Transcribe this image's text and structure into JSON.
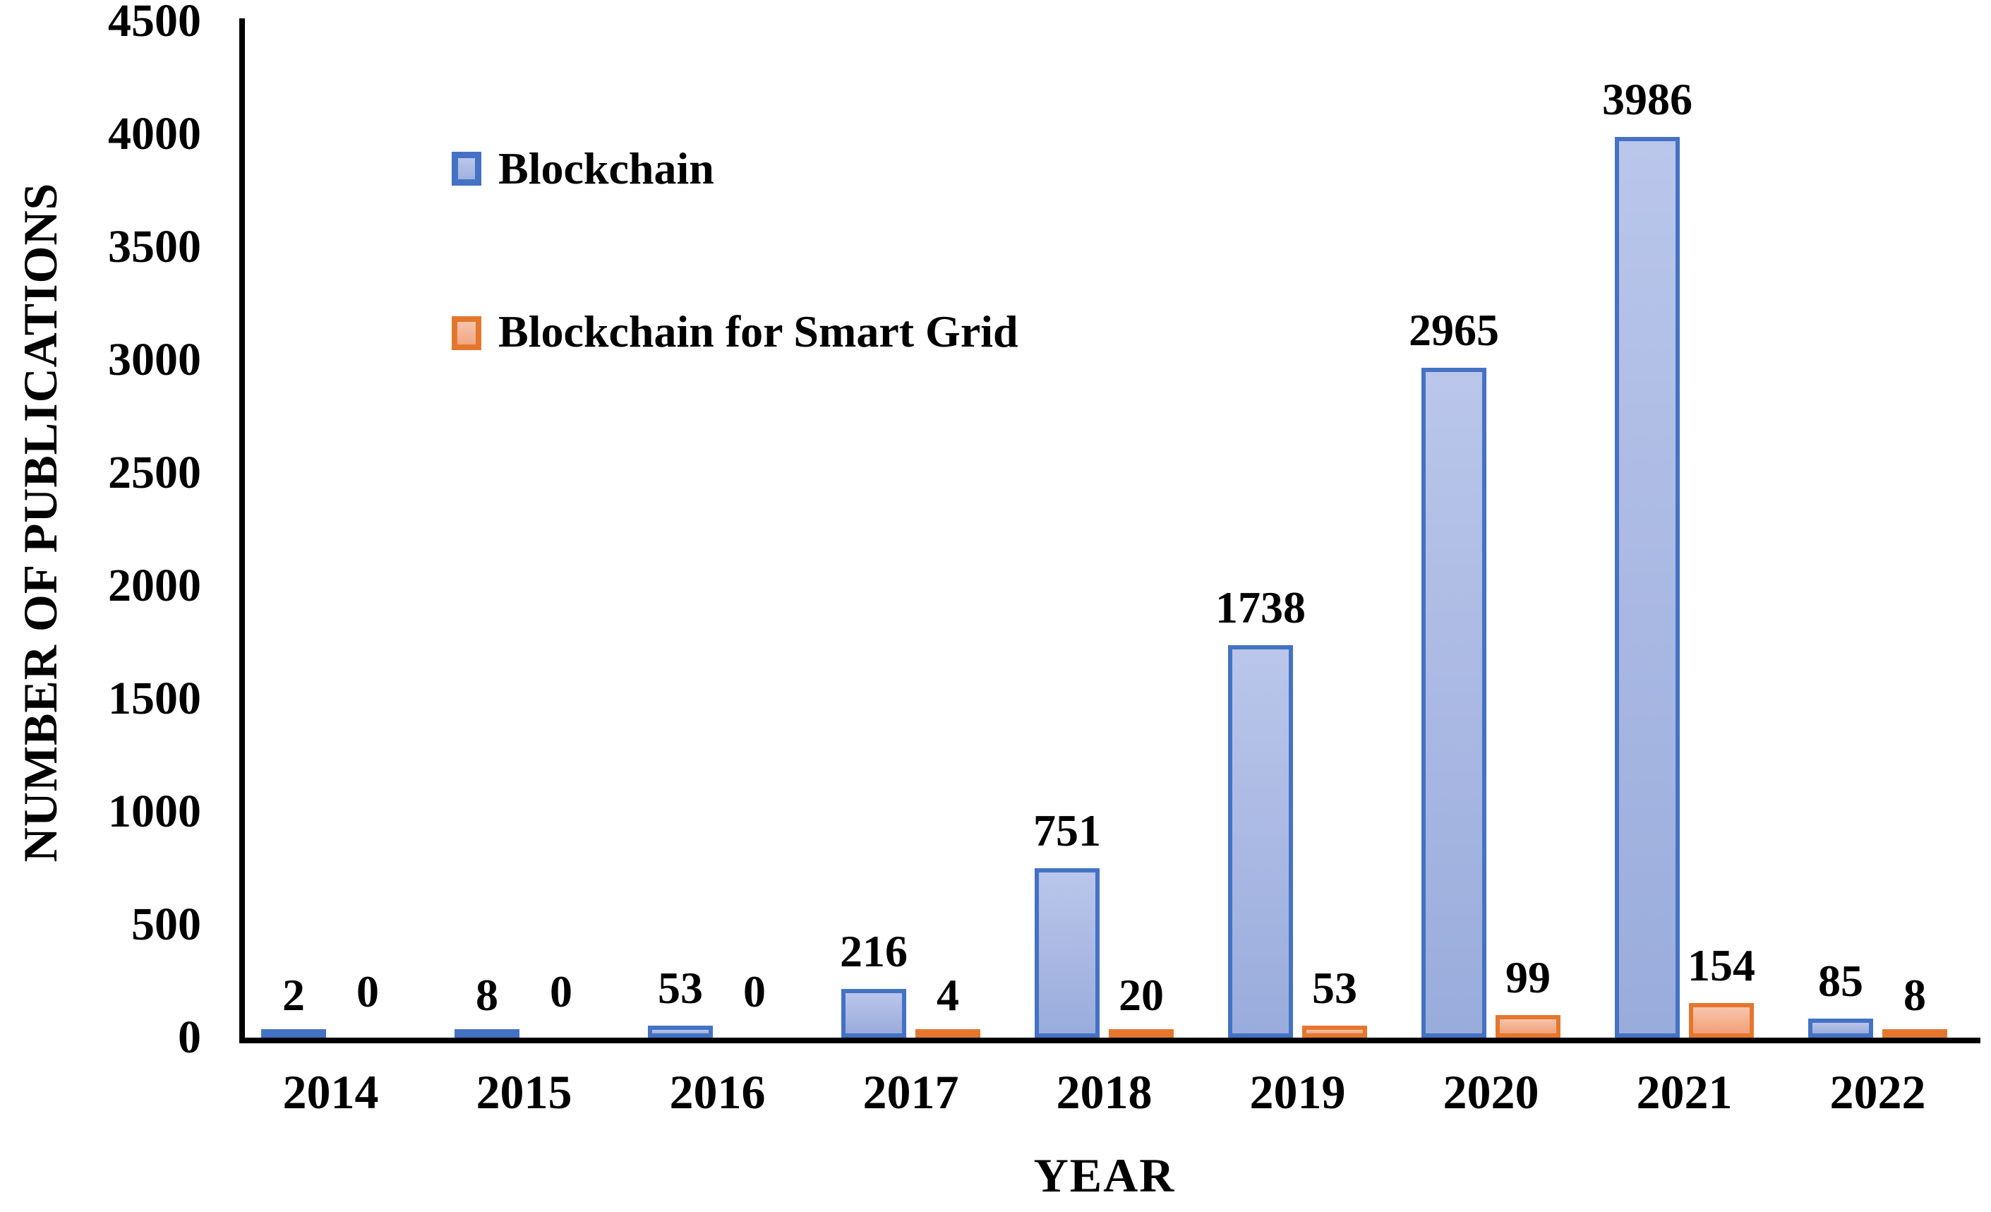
{
  "chart_data": {
    "type": "bar",
    "title": "",
    "xlabel": "YEAR",
    "ylabel": "NUMBER OF PUBLICATIONS",
    "categories": [
      "2014",
      "2015",
      "2016",
      "2017",
      "2018",
      "2019",
      "2020",
      "2021",
      "2022"
    ],
    "series": [
      {
        "name": "Blockchain",
        "values": [
          2,
          8,
          53,
          216,
          751,
          1738,
          2965,
          3986,
          85
        ],
        "border_color": "#4472C4",
        "fill_top": "#BAC6EA",
        "fill_bottom": "#9AACDC"
      },
      {
        "name": "Blockchain for Smart Grid",
        "values": [
          0,
          0,
          0,
          4,
          20,
          53,
          99,
          154,
          8
        ],
        "border_color": "#E4772D",
        "fill_top": "#F6C4AC",
        "fill_bottom": "#F2A078"
      }
    ],
    "data_labels_visible": true,
    "ylim": [
      0,
      4500
    ],
    "ytick_step": 500,
    "yticks": [
      "0",
      "500",
      "1000",
      "1500",
      "2000",
      "2500",
      "3000",
      "3500",
      "4000",
      "4500"
    ],
    "grid": false,
    "legend_position": "upper-left-inside",
    "axis_color": "#000000",
    "text_color": "#000000",
    "background_color": "#FFFFFF"
  }
}
